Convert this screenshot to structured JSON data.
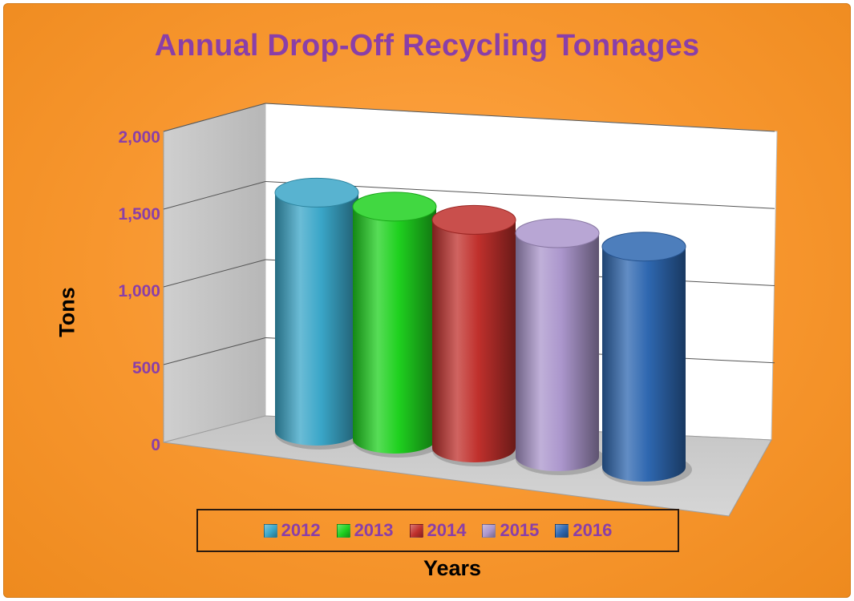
{
  "chart_data": {
    "type": "bar",
    "title": "Annual Drop-Off Recycling Tonnages",
    "xlabel": "Years",
    "ylabel": "Tons",
    "ylim": [
      0,
      2000
    ],
    "yticks": [
      "0",
      "500",
      "1,000",
      "1,500",
      "2,000"
    ],
    "grid": true,
    "legend_position": "bottom",
    "categories": [
      "2012",
      "2013",
      "2014",
      "2015",
      "2016"
    ],
    "series": [
      {
        "name": "2012",
        "value": 1600,
        "color": "#3aa6c8"
      },
      {
        "name": "2013",
        "value": 1560,
        "color": "#1fd11f"
      },
      {
        "name": "2014",
        "value": 1530,
        "color": "#c0302c"
      },
      {
        "name": "2015",
        "value": 1500,
        "color": "#ab96cc"
      },
      {
        "name": "2016",
        "value": 1480,
        "color": "#2e67b0"
      }
    ]
  }
}
